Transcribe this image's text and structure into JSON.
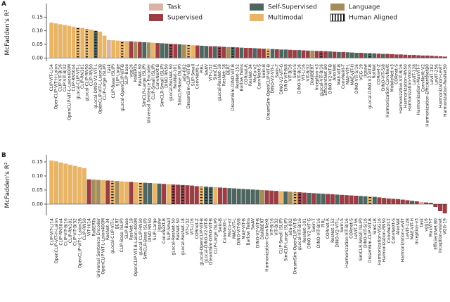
{
  "chart_data": [
    {
      "type": "bar",
      "panel": "A",
      "ylabel": "McFadden's R²",
      "legend": [
        {
          "name": "Task",
          "color": "#d9b3a5"
        },
        {
          "name": "Supervised",
          "color": "#9b3d45"
        },
        {
          "name": "Self-Supervised",
          "color": "#4f6660"
        },
        {
          "name": "Multimodal",
          "color": "#e8b567"
        },
        {
          "name": "Language",
          "color": "#a58d5b"
        }
      ],
      "hatch_legend": "Human Aligned",
      "ylim": [
        -0.012,
        0.2
      ],
      "yticks": [
        {
          "value": 0,
          "label": "0.00"
        },
        {
          "value": 0.05,
          "label": "0.05"
        },
        {
          "value": 0.1,
          "label": "0.10"
        },
        {
          "value": 0.15,
          "label": "0.15"
        }
      ],
      "categories": [
        "CLIP-ViT-L/14",
        "OpenCLIP-ViT-H-Laion",
        "CLIP-ViT-B/16",
        "CLIP-ViT-B/32",
        "OpenCLIP-ViT-L-Laion400M",
        "CLIP-RN50x4",
        "gLocal-CLIP-ViT-L",
        "CLIP-RN101",
        "gLocal-CLIP-RN50",
        "CLIP-RN50",
        "gLocal-DINO-V2-ViT-L",
        "OpenCLIP-ViT-L-Laion2B",
        "CLIP-Large (SLIP)",
        "task",
        "CLIP-Base (SLIP)",
        "SLIP-Large",
        "gLocal-OpenCLIP-ViT-B",
        "SLIP-Base",
        "vgg16",
        "RoBERTa",
        "ResNet-50",
        "SimCLR-Large (SLIP)",
        "Universal Sentence Encoder",
        "CLIP-Small (SLIP)",
        "ConvNeXt-B",
        "SimCLR-Small (SLIP)",
        "DINO RN50",
        "gLocal-ResNet-50",
        "ResNet-101",
        "SimCLR-Base (SLIP)",
        "ada-002",
        "DreamSim-CLIP-ViT-B",
        "SLIP-Small",
        "ConvNeXt-L",
        "PIRL",
        "SwAV",
        "ViT-L/32",
        "SimCLR",
        "gLocal-ResNet-18",
        "ResNet-18",
        "BERT",
        "DreamSim-DINO-ViT-B",
        "ResNet-152",
        "Barlow Twins",
        "CORnet-R",
        "ResNet-34",
        "MoCo-v2",
        "ConvNeXt-S",
        "Swin-B",
        "DreamSim-OpenCLIP-ViT-B",
        "DINO-V2-ViT-L",
        "Swin-T",
        "DINO-V2-ViT-G",
        "DINO-ViT-B/8",
        "ViT-B/16",
        "Swin-S",
        "DINO-ViT-B/16",
        "ViT-L/16",
        "ViT-B/32",
        "DistilBERT",
        "Inception-v3",
        "gLocal-ViT-B/16",
        "EfficientNet B0",
        "DINO-V2-ViT-B",
        "AlexNet",
        "MAE-ViT-B",
        "ConvNeXt-T",
        "MAE-ViT-L",
        "MAE-ViT-H",
        "DINO-ViT-S/16",
        "VGG-19",
        "Jigsaw",
        "gLocal-DINO-V2-ViT-B",
        "RotNet",
        "CORnet-Z",
        "DINO-ViT-S/8",
        "Harmonization-ConvNeXt",
        "MobileNet-v3",
        "CORnet-S",
        "Harmonization-ViT-B/16",
        "Harmonization-RN50",
        "Harmonization-VGG16",
        "LeViT-128",
        "Harmonization-MaxViT-T",
        "ConvNeXt-V2",
        "Harmonization-EfficientNetB0",
        "LeViT-192",
        "LeViT-256",
        "Harmonization-LeViT",
        "Harmonization-ResNet50"
      ],
      "values": [
        0.13,
        0.127,
        0.124,
        0.121,
        0.118,
        0.115,
        0.112,
        0.11,
        0.107,
        0.104,
        0.1,
        0.097,
        0.082,
        0.066,
        0.065,
        0.064,
        0.063,
        0.062,
        0.061,
        0.06,
        0.059,
        0.058,
        0.057,
        0.056,
        0.055,
        0.054,
        0.053,
        0.052,
        0.051,
        0.05,
        0.049,
        0.048,
        0.047,
        0.046,
        0.045,
        0.044,
        0.043,
        0.043,
        0.042,
        0.041,
        0.04,
        0.04,
        0.039,
        0.038,
        0.037,
        0.037,
        0.036,
        0.035,
        0.034,
        0.034,
        0.033,
        0.032,
        0.031,
        0.031,
        0.03,
        0.029,
        0.029,
        0.028,
        0.027,
        0.027,
        0.026,
        0.025,
        0.025,
        0.024,
        0.023,
        0.022,
        0.022,
        0.021,
        0.02,
        0.019,
        0.019,
        0.018,
        0.017,
        0.017,
        0.016,
        0.015,
        0.015,
        0.014,
        0.013,
        0.013,
        0.012,
        0.011,
        0.011,
        0.01,
        0.009,
        0.009,
        0.008,
        0.007,
        0.006,
        0.005
      ],
      "groups": [
        3,
        3,
        3,
        3,
        3,
        3,
        3,
        3,
        3,
        3,
        2,
        3,
        3,
        0,
        3,
        3,
        3,
        3,
        1,
        4,
        1,
        2,
        4,
        3,
        1,
        2,
        2,
        1,
        1,
        2,
        4,
        3,
        3,
        1,
        2,
        2,
        1,
        2,
        1,
        1,
        4,
        2,
        1,
        2,
        1,
        1,
        2,
        1,
        1,
        3,
        2,
        1,
        2,
        2,
        1,
        1,
        2,
        1,
        1,
        4,
        1,
        1,
        1,
        2,
        1,
        2,
        1,
        2,
        2,
        2,
        1,
        2,
        2,
        2,
        1,
        2,
        1,
        1,
        1,
        1,
        1,
        1,
        1,
        1,
        1,
        1,
        1,
        1,
        1,
        1
      ],
      "human_aligned": [
        6,
        8,
        10,
        16,
        27,
        31,
        38,
        41,
        49,
        61,
        72
      ]
    },
    {
      "type": "bar",
      "panel": "B",
      "ylabel": "McFadden's R²",
      "ylim": [
        -0.04,
        0.175
      ],
      "yticks": [
        {
          "value": 0,
          "label": "0.00"
        },
        {
          "value": 0.05,
          "label": "0.05"
        },
        {
          "value": 0.1,
          "label": "0.10"
        },
        {
          "value": 0.15,
          "label": "0.15"
        }
      ],
      "categories": [
        "CLIP-ViT-L/14",
        "OpenCLIP-ViT-H-Laion",
        "CLIP-RN50x4",
        "CLIP-ViT-B/16",
        "CLIP-RN101",
        "CLIP-ViT-B/32",
        "OpenCLIP-ViT-L-Laion2B",
        "CLIP-RN50",
        "ViT-H/14",
        "RoBERTa",
        "Universal Sentence Encoder",
        "OpenCLIP-ViT-L-Laion400M",
        "ResNet-34",
        "gLocal-CLIP-ViT-L",
        "BERT",
        "CLIP-Base (SLIP)",
        "SLIP-Base",
        "ResNet-18",
        "OpenCLIP-ViT-B-Laion-400M",
        "gLocal-CLIP-RN50",
        "SimCLR-Base (SLIP)",
        "DINO RN50",
        "SLIP-Large",
        "Jigsaw",
        "ConvNeXt-B",
        "SLIP-Small",
        "gLocal-ResNet-50",
        "ResNet-50",
        "gLocal-ResNet-18",
        "ViT-L/32",
        "ViT-L/16",
        "CORnet-Z",
        "gLocal-OpenCLIP-ViT-B",
        "gLocal-DINO-V2-ViT-B",
        "DreamSim-DINO-ViT-B",
        "CLIP-Large (SLIP)",
        "Swin-B",
        "ConvNeXt-L",
        "MoCo-v2",
        "MAE-ViT-L",
        "DINO-ViT-B/8",
        "MAE-ViT-B",
        "Barlow Twins",
        "SwAV",
        "DINO-V2-ViT-B",
        "DistilBERT",
        "Harmonization-ConvNeXt",
        "ViT-B/16",
        "ViT-B/32",
        "CLIP-Small (SLIP)",
        "SimCLR-Large (SLIP)",
        "ada-002",
        "DreamSim-OpenCLIP-ViT-B",
        "gLocal-ViT-B/16",
        "ResNet-101",
        "DINO-V2-ViT-G",
        "Swin-T",
        "DINO-ViT-B/16",
        "PIRL",
        "CORnet-R",
        "ResNet-152",
        "DINO-V2-ViT-L",
        "Swin-S",
        "Harmonization-ViT-B/16",
        "CORnet-S",
        "LeViT-256",
        "SimCLR-Small (SLIP)",
        "DINO-ViT-S/16",
        "DreamSim-CLIP-ViT-B",
        "SimCLR",
        "Harmonization-VGG16",
        "Harmonization-RN50",
        "ConvNeXt-T",
        "ConvNeXt-S",
        "AlexNet",
        "Harmonization-LeViT",
        "LeViT-128",
        "MAE-ViT-H",
        "Inception-v3",
        "task",
        "vgg16",
        "MaxViT-T",
        "EfficientNet B0",
        "Inception-resnet",
        "VGG-19"
      ],
      "values": [
        0.155,
        0.152,
        0.148,
        0.144,
        0.14,
        0.136,
        0.132,
        0.128,
        0.088,
        0.087,
        0.086,
        0.085,
        0.084,
        0.083,
        0.082,
        0.081,
        0.08,
        0.079,
        0.078,
        0.077,
        0.076,
        0.075,
        0.074,
        0.073,
        0.072,
        0.071,
        0.07,
        0.069,
        0.068,
        0.067,
        0.066,
        0.064,
        0.063,
        0.062,
        0.061,
        0.06,
        0.059,
        0.058,
        0.057,
        0.056,
        0.055,
        0.054,
        0.053,
        0.052,
        0.051,
        0.05,
        0.049,
        0.048,
        0.047,
        0.046,
        0.045,
        0.044,
        0.043,
        0.042,
        0.041,
        0.04,
        0.039,
        0.038,
        0.037,
        0.036,
        0.035,
        0.034,
        0.033,
        0.032,
        0.031,
        0.03,
        0.029,
        0.028,
        0.027,
        0.026,
        0.024,
        0.022,
        0.02,
        0.019,
        0.018,
        0.016,
        0.014,
        0.012,
        0.01,
        0.008,
        0.006,
        0.005,
        -0.01,
        -0.025,
        -0.033
      ],
      "groups": [
        3,
        3,
        3,
        3,
        3,
        3,
        3,
        3,
        1,
        4,
        4,
        3,
        1,
        3,
        4,
        3,
        3,
        1,
        3,
        3,
        2,
        2,
        3,
        2,
        1,
        3,
        1,
        1,
        1,
        1,
        1,
        1,
        3,
        2,
        2,
        3,
        1,
        1,
        2,
        2,
        2,
        2,
        2,
        2,
        2,
        4,
        1,
        1,
        1,
        3,
        2,
        4,
        3,
        1,
        1,
        2,
        1,
        2,
        2,
        1,
        1,
        2,
        1,
        1,
        1,
        1,
        2,
        2,
        3,
        2,
        1,
        1,
        1,
        1,
        1,
        1,
        1,
        2,
        1,
        0,
        1,
        1,
        1,
        1,
        1
      ],
      "human_aligned": [
        13,
        19,
        26,
        28,
        32,
        33,
        34,
        52,
        53,
        68
      ]
    }
  ]
}
